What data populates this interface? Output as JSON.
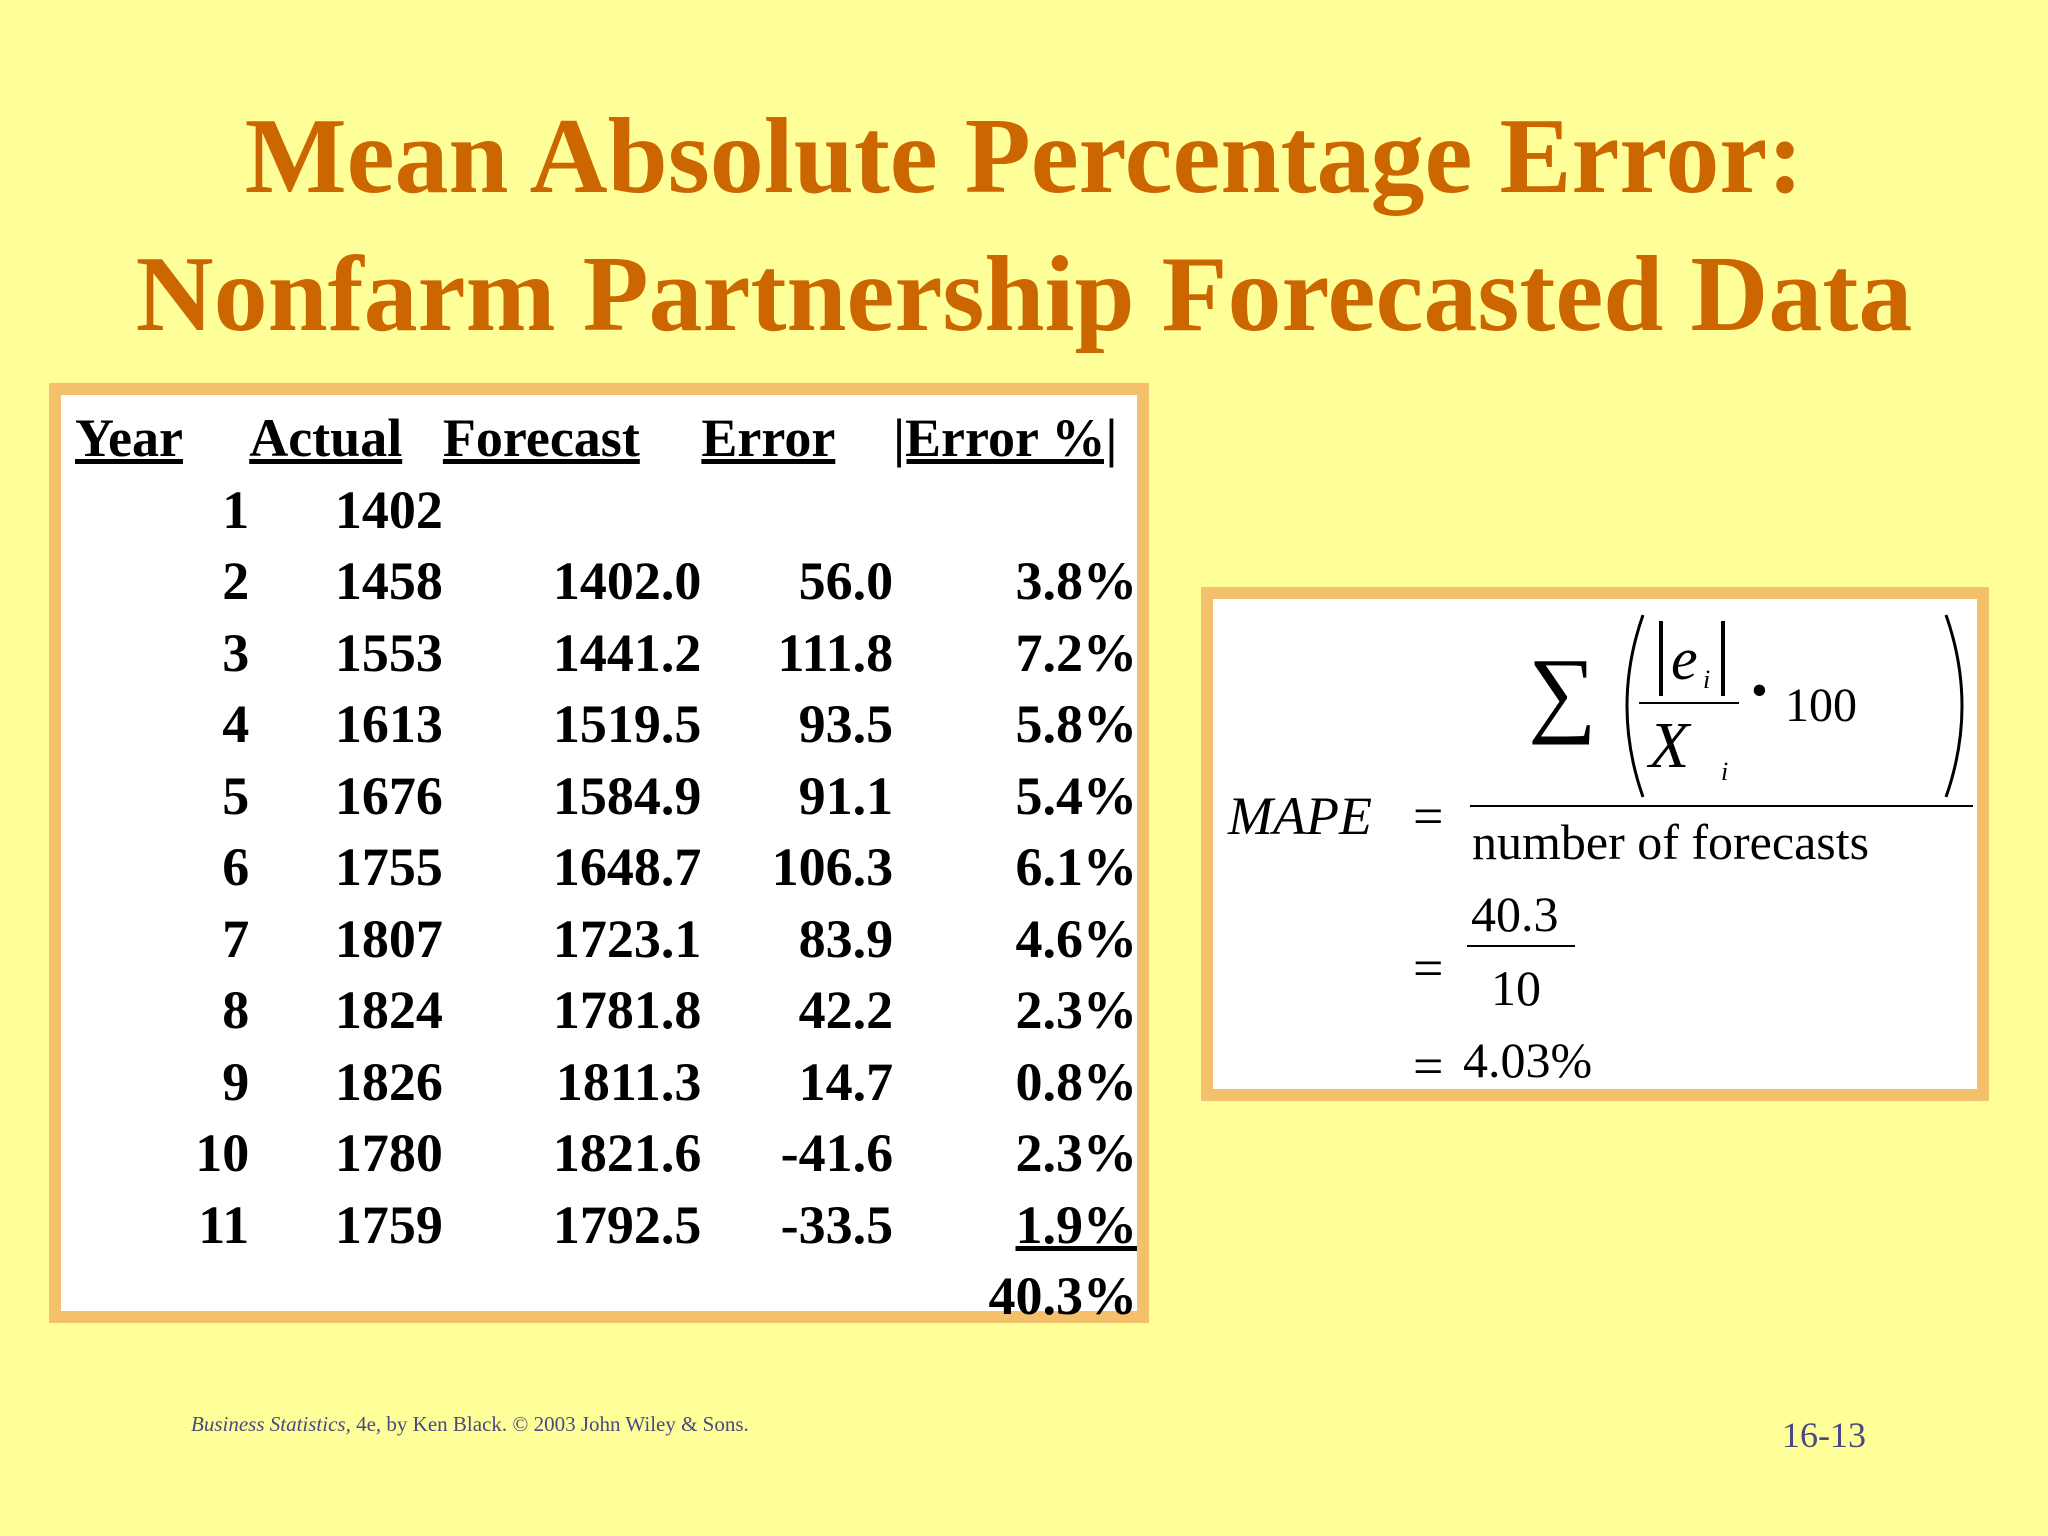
{
  "title": {
    "line1": "Mean Absolute Percentage Error:",
    "line2": "Nonfarm Partnership Forecasted Data"
  },
  "table": {
    "headers": {
      "year": "Year",
      "actual": "Actual",
      "forecast": "Forecast",
      "error": "Error",
      "abs_error_pct": "|Error %|"
    },
    "rows": [
      {
        "year": "1",
        "actual": "1402",
        "forecast": "",
        "error": "",
        "pct": ""
      },
      {
        "year": "2",
        "actual": "1458",
        "forecast": "1402.0",
        "error": "56.0",
        "pct": "3.8%"
      },
      {
        "year": "3",
        "actual": "1553",
        "forecast": "1441.2",
        "error": "111.8",
        "pct": "7.2%"
      },
      {
        "year": "4",
        "actual": "1613",
        "forecast": "1519.5",
        "error": "93.5",
        "pct": "5.8%"
      },
      {
        "year": "5",
        "actual": "1676",
        "forecast": "1584.9",
        "error": "91.1",
        "pct": "5.4%"
      },
      {
        "year": "6",
        "actual": "1755",
        "forecast": "1648.7",
        "error": "106.3",
        "pct": "6.1%"
      },
      {
        "year": "7",
        "actual": "1807",
        "forecast": "1723.1",
        "error": "83.9",
        "pct": "4.6%"
      },
      {
        "year": "8",
        "actual": "1824",
        "forecast": "1781.8",
        "error": "42.2",
        "pct": "2.3%"
      },
      {
        "year": "9",
        "actual": "1826",
        "forecast": "1811.3",
        "error": "14.7",
        "pct": "0.8%"
      },
      {
        "year": "10",
        "actual": "1780",
        "forecast": "1821.6",
        "error": "-41.6",
        "pct": "2.3%"
      },
      {
        "year": "11",
        "actual": "1759",
        "forecast": "1792.5",
        "error": "-33.5",
        "pct": "1.9%"
      }
    ],
    "total": "40.3%"
  },
  "formula": {
    "lhs": "MAPE",
    "equals": "=",
    "sigma": "∑",
    "numer_var": "e",
    "numer_sub": "i",
    "denom_var": "X",
    "denom_sub": "i",
    "bullet": "•",
    "factor": "100",
    "denominator": "number of forecasts",
    "step_num": "40.3",
    "step_den": "10",
    "result": "4.03%"
  },
  "footer": {
    "book": "Business Statistics,",
    "credit": " 4e, by Ken Black. © 2003 John Wiley & Sons.",
    "slide_number": "16-13"
  }
}
